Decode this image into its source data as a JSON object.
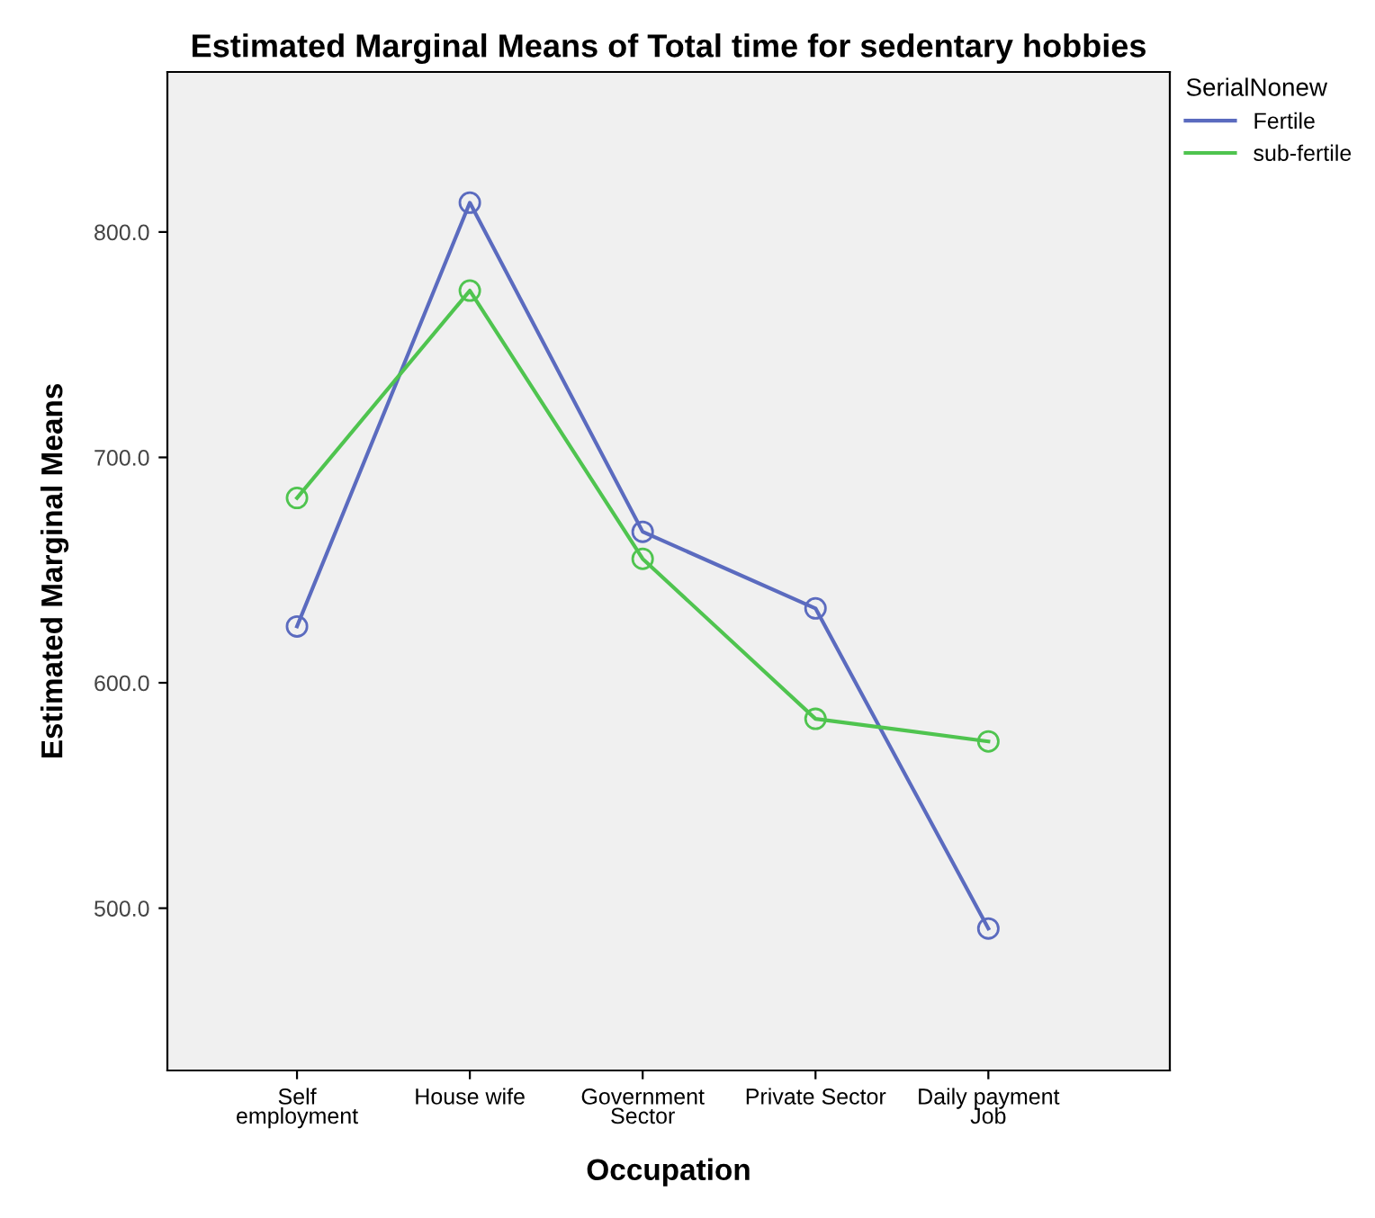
{
  "chart_data": {
    "type": "line",
    "title": "Estimated Marginal Means of Total time for sedentary hobbies",
    "xlabel": "Occupation",
    "ylabel": "Estimated Marginal Means",
    "legend_title": "SerialNonew",
    "categories": [
      "Self\nemployment",
      "House wife",
      "Government\nSector",
      "Private Sector",
      "Daily payment\nJob"
    ],
    "series": [
      {
        "name": "Fertile",
        "color": "#5b6bbf",
        "values": [
          625,
          813,
          667,
          633,
          491
        ]
      },
      {
        "name": "sub-fertile",
        "color": "#4fc44f",
        "values": [
          682,
          774,
          655,
          584,
          574
        ]
      }
    ],
    "ylim": [
      428,
      871
    ],
    "yticks": [
      {
        "value": 500,
        "label": "500.0"
      },
      {
        "value": 600,
        "label": "600.0"
      },
      {
        "value": 700,
        "label": "700.0"
      },
      {
        "value": 800,
        "label": "800.0"
      }
    ],
    "grid": false,
    "legend": "top right",
    "marker": "circle",
    "line_style": "solid"
  }
}
